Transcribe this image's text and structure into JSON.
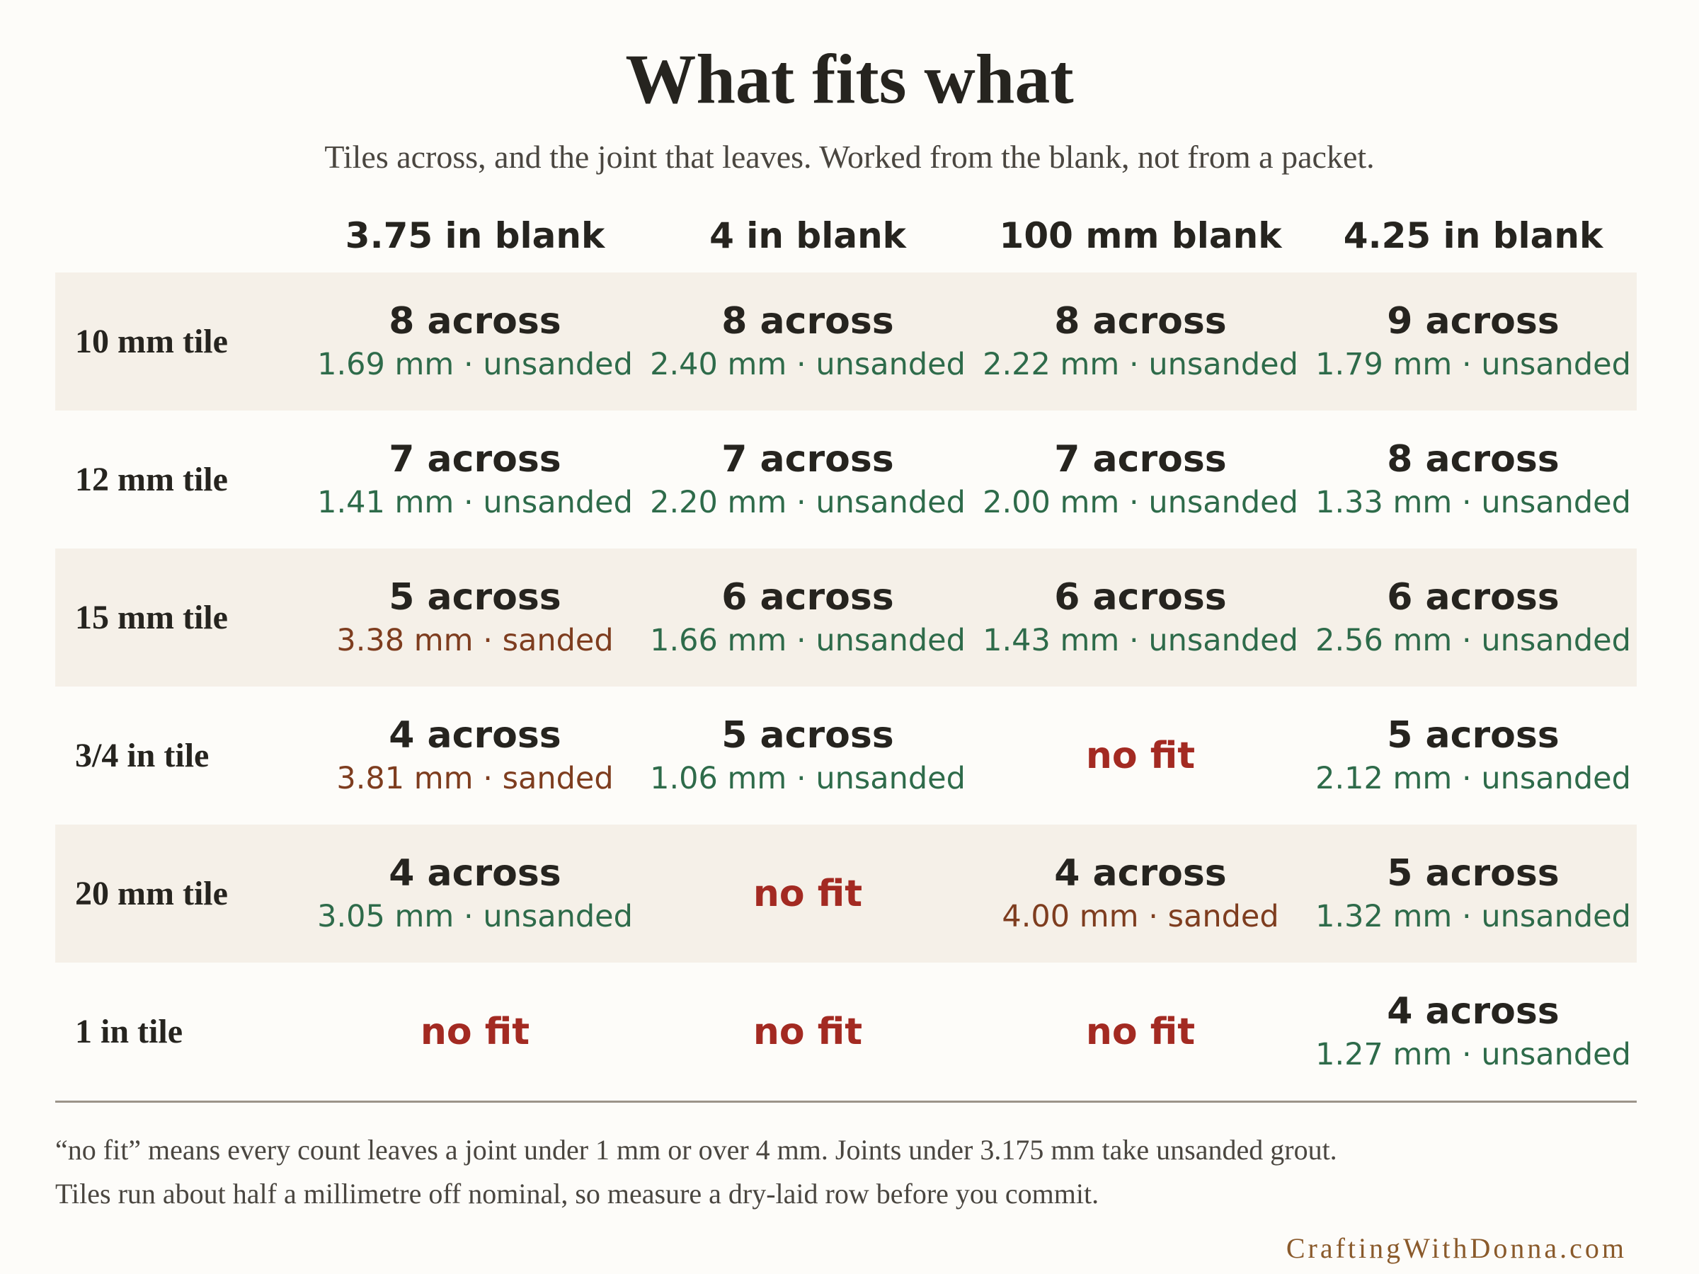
{
  "title": "What fits what",
  "subtitle": "Tiles across, and the joint that leaves. Worked from the blank, not from a packet.",
  "columns": [
    "3.75 in blank",
    "4 in blank",
    "100 mm blank",
    "4.25 in blank"
  ],
  "rows": [
    {
      "label": "10 mm tile",
      "cells": [
        {
          "count": "8 across",
          "joint": "1.69 mm · unsanded",
          "grout": "unsanded"
        },
        {
          "count": "8 across",
          "joint": "2.40 mm · unsanded",
          "grout": "unsanded"
        },
        {
          "count": "8 across",
          "joint": "2.22 mm · unsanded",
          "grout": "unsanded"
        },
        {
          "count": "9 across",
          "joint": "1.79 mm · unsanded",
          "grout": "unsanded"
        }
      ]
    },
    {
      "label": "12 mm tile",
      "cells": [
        {
          "count": "7 across",
          "joint": "1.41 mm · unsanded",
          "grout": "unsanded"
        },
        {
          "count": "7 across",
          "joint": "2.20 mm · unsanded",
          "grout": "unsanded"
        },
        {
          "count": "7 across",
          "joint": "2.00 mm · unsanded",
          "grout": "unsanded"
        },
        {
          "count": "8 across",
          "joint": "1.33 mm · unsanded",
          "grout": "unsanded"
        }
      ]
    },
    {
      "label": "15 mm tile",
      "cells": [
        {
          "count": "5 across",
          "joint": "3.38 mm · sanded",
          "grout": "sanded"
        },
        {
          "count": "6 across",
          "joint": "1.66 mm · unsanded",
          "grout": "unsanded"
        },
        {
          "count": "6 across",
          "joint": "1.43 mm · unsanded",
          "grout": "unsanded"
        },
        {
          "count": "6 across",
          "joint": "2.56 mm · unsanded",
          "grout": "unsanded"
        }
      ]
    },
    {
      "label": "3/4 in tile",
      "cells": [
        {
          "count": "4 across",
          "joint": "3.81 mm · sanded",
          "grout": "sanded"
        },
        {
          "count": "5 across",
          "joint": "1.06 mm · unsanded",
          "grout": "unsanded"
        },
        {
          "nofit": "no fit"
        },
        {
          "count": "5 across",
          "joint": "2.12 mm · unsanded",
          "grout": "unsanded"
        }
      ]
    },
    {
      "label": "20 mm tile",
      "cells": [
        {
          "count": "4 across",
          "joint": "3.05 mm · unsanded",
          "grout": "unsanded"
        },
        {
          "nofit": "no fit"
        },
        {
          "count": "4 across",
          "joint": "4.00 mm · sanded",
          "grout": "sanded"
        },
        {
          "count": "5 across",
          "joint": "1.32 mm · unsanded",
          "grout": "unsanded"
        }
      ]
    },
    {
      "label": "1 in tile",
      "cells": [
        {
          "nofit": "no fit"
        },
        {
          "nofit": "no fit"
        },
        {
          "nofit": "no fit"
        },
        {
          "count": "4 across",
          "joint": "1.27 mm · unsanded",
          "grout": "unsanded"
        }
      ]
    }
  ],
  "notes": [
    "“no fit” means every count leaves a joint under 1 mm or over 4 mm. Joints under 3.175 mm take unsanded grout.",
    "Tiles run about half a millimetre off nominal, so measure a dry-laid row before you commit."
  ],
  "credit": "CraftingWithDonna.com",
  "colors": {
    "unsanded": "#2e6b4a",
    "sanded": "#7e3d1f",
    "no_fit": "#a32a22",
    "row_shade": "#f5f0e8"
  }
}
